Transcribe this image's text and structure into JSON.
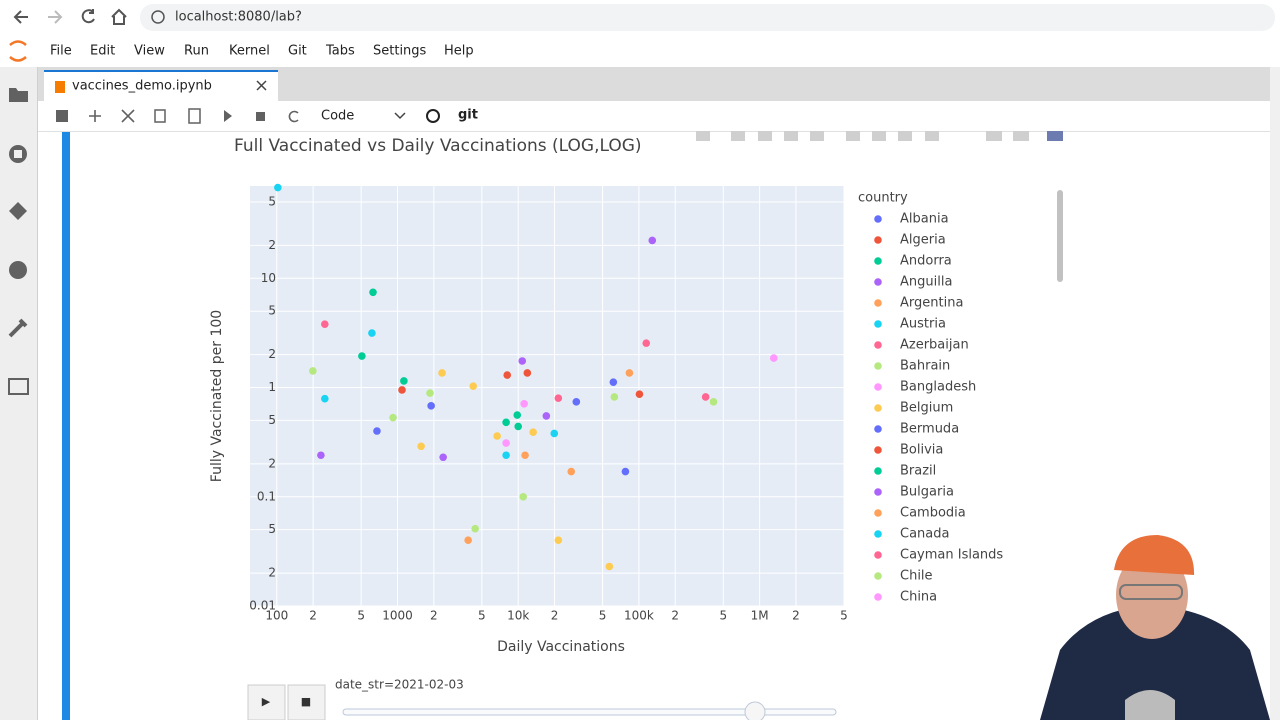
{
  "browser": {
    "url": "localhost:8080/lab?"
  },
  "menu": [
    "File",
    "Edit",
    "View",
    "Run",
    "Kernel",
    "Git",
    "Tabs",
    "Settings",
    "Help"
  ],
  "tab": {
    "title": "vaccines_demo.ipynb"
  },
  "toolbar": {
    "cell_type": "Code",
    "git": "git"
  },
  "chart_data": {
    "type": "scatter",
    "title": "Full Vaccinated vs Daily Vaccinations (LOG,LOG)",
    "x_label": "Daily Vaccinations",
    "y_label": "Fully Vaccinated per 100",
    "legend_title": "country",
    "log_x": true,
    "log_y": true,
    "grid": true,
    "xlim": [
      60,
      5000000
    ],
    "ylim": [
      0.01,
      70
    ],
    "xticks": [
      100,
      {
        "value": 200,
        "label": "2"
      },
      {
        "value": 500,
        "label": "5"
      },
      1000,
      {
        "value": 2000,
        "label": "2"
      },
      {
        "value": 5000,
        "label": "5"
      },
      {
        "value": 10000,
        "label": "10k"
      },
      {
        "value": 20000,
        "label": "2"
      },
      {
        "value": 50000,
        "label": "5"
      },
      {
        "value": 100000,
        "label": "100k"
      },
      {
        "value": 200000,
        "label": "2"
      },
      {
        "value": 500000,
        "label": "5"
      },
      {
        "value": 1000000,
        "label": "1M"
      },
      {
        "value": 2000000,
        "label": "2"
      },
      {
        "value": 5000000,
        "label": "5"
      }
    ],
    "yticks": [
      0.01,
      {
        "value": 0.02,
        "label": "2"
      },
      {
        "value": 0.05,
        "label": "5"
      },
      0.1,
      {
        "value": 0.2,
        "label": "2"
      },
      {
        "value": 0.5,
        "label": "5"
      },
      1,
      {
        "value": 2,
        "label": "2"
      },
      {
        "value": 5,
        "label": "5"
      },
      10,
      {
        "value": 20,
        "label": "2"
      },
      {
        "value": 50,
        "label": "5"
      }
    ],
    "series": [
      {
        "name": "Albania",
        "color": "#636efa",
        "x": [
          61400,
          30300,
          1900
        ],
        "values": [
          1.12,
          0.74,
          0.68
        ]
      },
      {
        "name": "Algeria",
        "color": "#ef553b",
        "x": [
          8110,
          11900
        ],
        "values": [
          1.3,
          1.36
        ]
      },
      {
        "name": "Andorra",
        "color": "#00cc96",
        "x": [
          627,
          507,
          1130
        ],
        "values": [
          7.45,
          1.94,
          1.15
        ]
      },
      {
        "name": "Anguilla",
        "color": "#ab63fa",
        "x": [
          129000,
          10800
        ],
        "values": [
          22.2,
          1.75
        ]
      },
      {
        "name": "Argentina",
        "color": "#ffa15a",
        "x": [
          83400,
          11400
        ],
        "values": [
          1.36,
          0.24
        ]
      },
      {
        "name": "Austria",
        "color": "#19d3f3",
        "x": [
          102,
          614
        ],
        "values": [
          67.8,
          3.15
        ]
      },
      {
        "name": "Azerbaijan",
        "color": "#ff6692",
        "x": [
          250,
          115000
        ],
        "values": [
          3.8,
          2.55
        ]
      },
      {
        "name": "Bahrain",
        "color": "#b6e880",
        "x": [
          199,
          1860,
          415000
        ],
        "values": [
          1.42,
          0.89,
          0.74
        ]
      },
      {
        "name": "Bangladesh",
        "color": "#ff97ff",
        "x": [
          1310000
        ],
        "values": [
          1.86
        ]
      },
      {
        "name": "Belgium",
        "color": "#fecb52",
        "x": [
          2340,
          4240,
          13300,
          6690,
          1570,
          21500,
          56900
        ],
        "values": [
          1.36,
          1.03,
          0.39,
          0.36,
          0.29,
          0.04,
          0.023
        ]
      },
      {
        "name": "Bermuda",
        "color": "#636efa",
        "x": [
          676,
          77300
        ],
        "values": [
          0.4,
          0.17
        ]
      },
      {
        "name": "Bolivia",
        "color": "#ef553b",
        "x": [
          1090,
          101000
        ],
        "values": [
          0.95,
          0.87
        ]
      },
      {
        "name": "Brazil",
        "color": "#00cc96",
        "x": [
          9820,
          7940,
          10000
        ],
        "values": [
          0.56,
          0.48,
          0.44
        ]
      },
      {
        "name": "Bulgaria",
        "color": "#ab63fa",
        "x": [
          17100,
          232,
          2390
        ],
        "values": [
          0.55,
          0.24,
          0.23
        ]
      },
      {
        "name": "Cambodia",
        "color": "#ffa15a",
        "x": [
          27500,
          3850
        ],
        "values": [
          0.17,
          0.04
        ]
      },
      {
        "name": "Canada",
        "color": "#19d3f3",
        "x": [
          250,
          19900,
          7940
        ],
        "values": [
          0.79,
          0.38,
          0.24
        ]
      },
      {
        "name": "Cayman Islands",
        "color": "#ff6692",
        "x": [
          357000,
          21500
        ],
        "values": [
          0.82,
          0.8
        ]
      },
      {
        "name": "Chile",
        "color": "#b6e880",
        "x": [
          62600,
          918,
          11000,
          4400
        ],
        "values": [
          0.82,
          0.53,
          0.1,
          0.051
        ]
      },
      {
        "name": "China",
        "color": "#ff97ff",
        "x": [
          11200,
          7940
        ],
        "values": [
          0.71,
          0.31
        ]
      }
    ]
  },
  "slider": {
    "play": "▶",
    "stop": "■",
    "label": "date_str=2021-02-03"
  }
}
